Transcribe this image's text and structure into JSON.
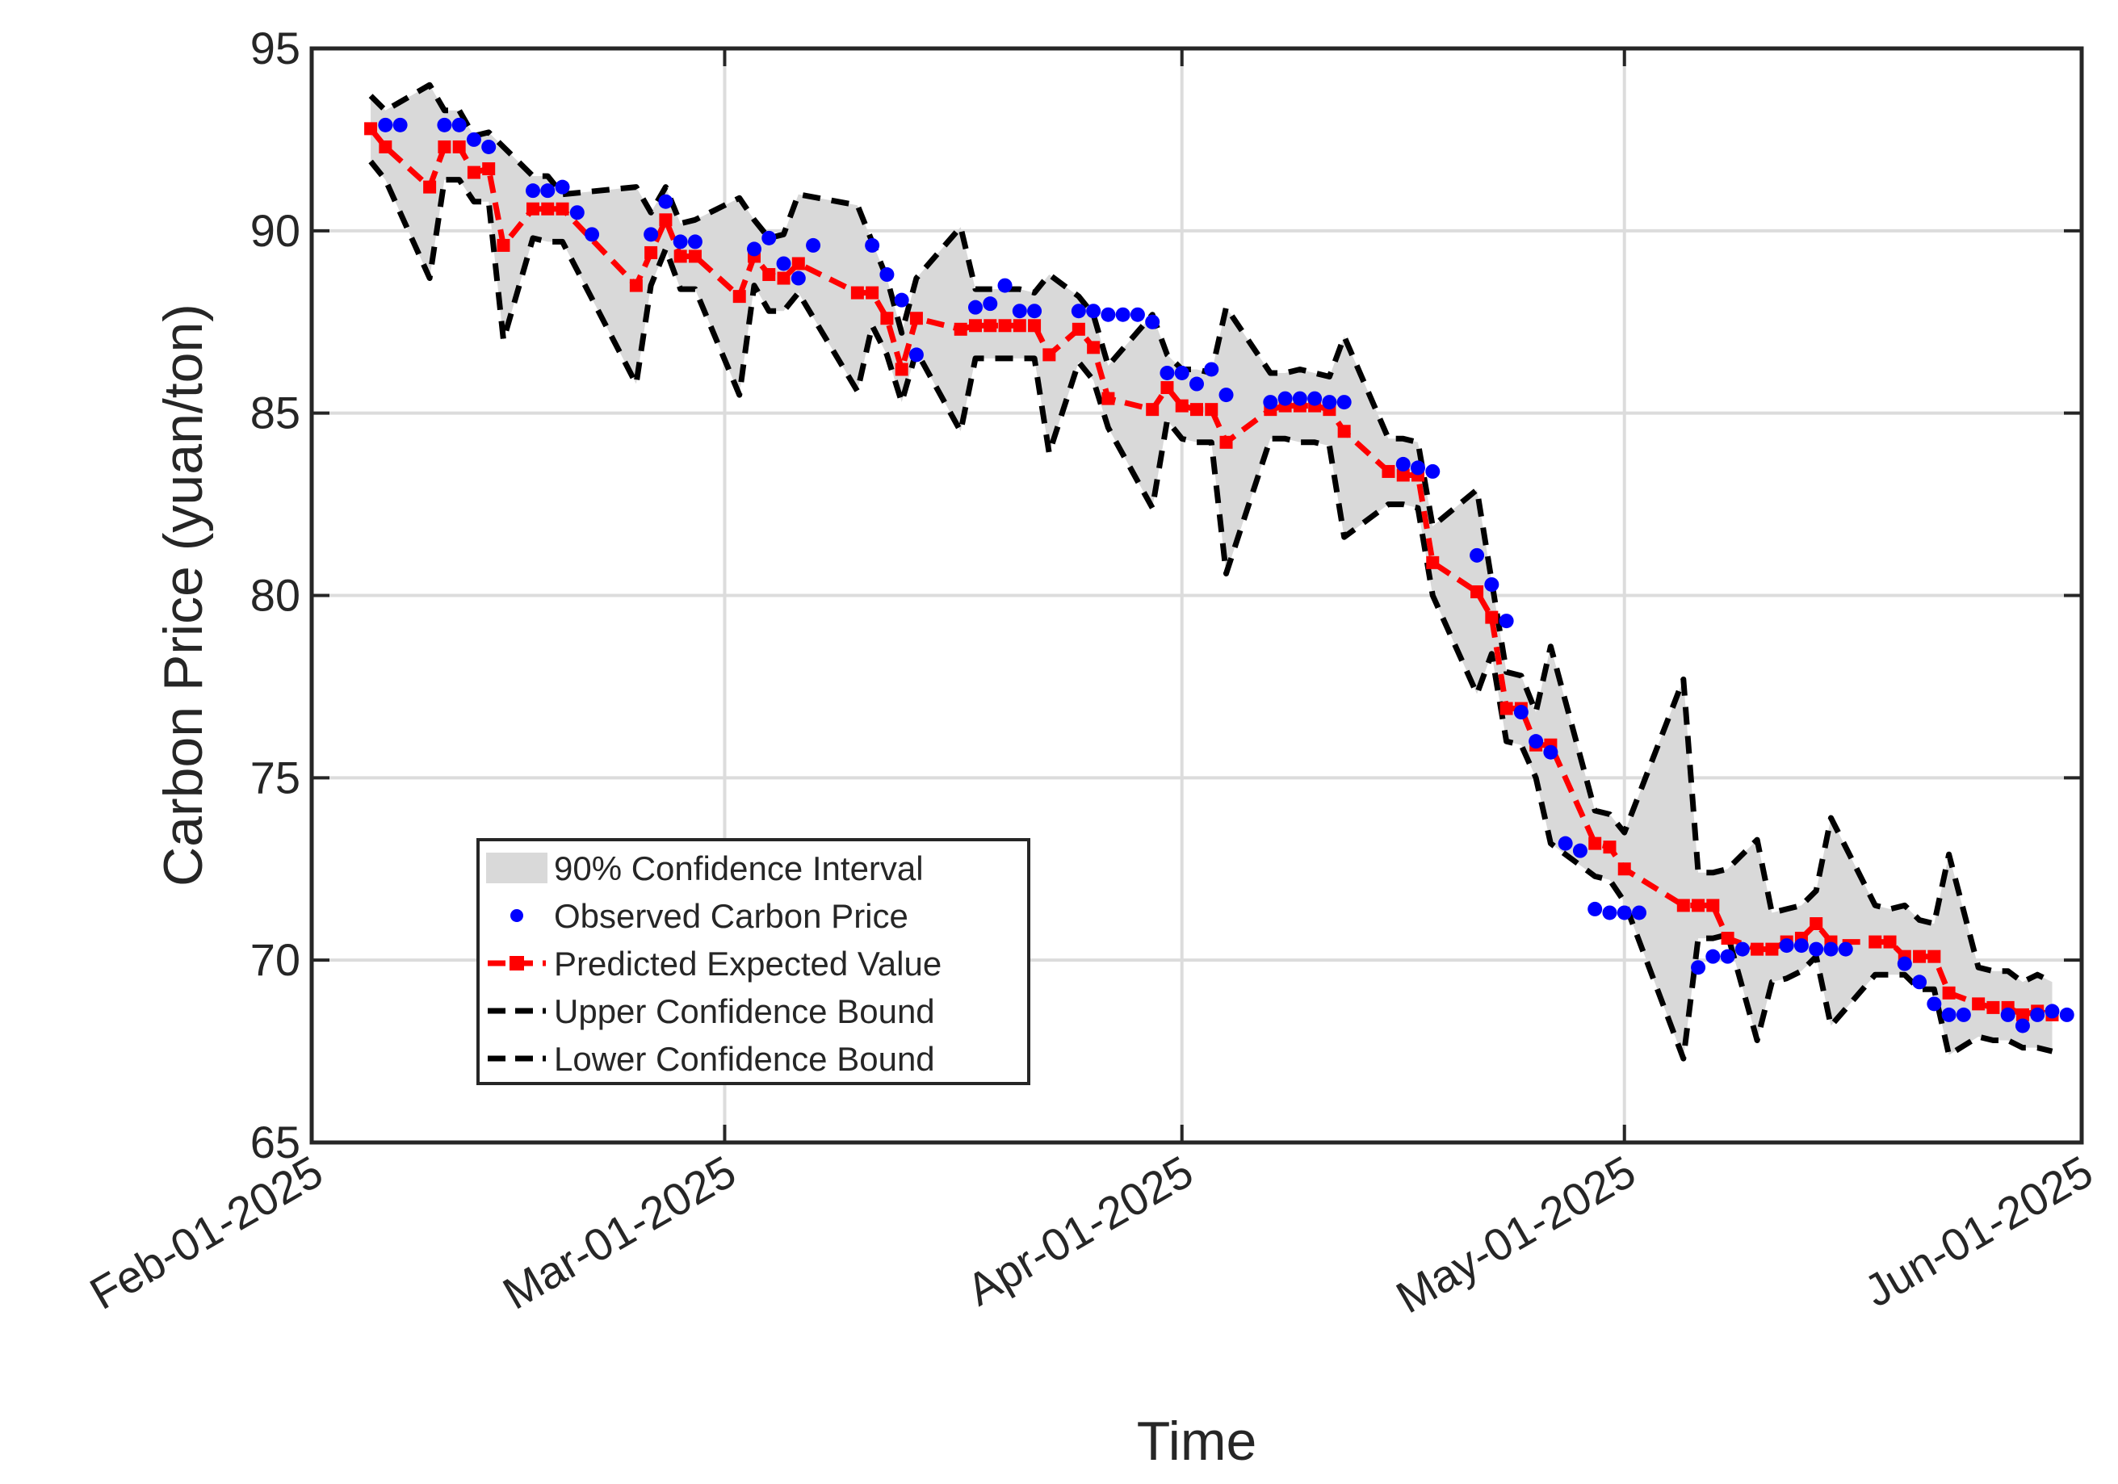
{
  "chart_data": {
    "type": "line",
    "title": "",
    "xlabel": "Time",
    "ylabel": "Carbon Price (yuan/ton)",
    "ylim": [
      65,
      95
    ],
    "xlim_day": [
      0,
      120
    ],
    "grid": true,
    "legend_position": "lower-left",
    "yticks": [
      65,
      70,
      75,
      80,
      85,
      90,
      95
    ],
    "xticks": [
      {
        "day": 0,
        "label": "Feb-01-2025"
      },
      {
        "day": 28,
        "label": "Mar-01-2025"
      },
      {
        "day": 59,
        "label": "Apr-01-2025"
      },
      {
        "day": 89,
        "label": "May-01-2025"
      },
      {
        "day": 120,
        "label": "Jun-01-2025"
      }
    ],
    "legend": [
      {
        "key": "ci",
        "label": "90% Confidence Interval"
      },
      {
        "key": "observed",
        "label": "Observed Carbon Price"
      },
      {
        "key": "predicted",
        "label": "Predicted Expected Value"
      },
      {
        "key": "upper",
        "label": "Upper Confidence Bound"
      },
      {
        "key": "lower",
        "label": "Lower Confidence Bound"
      }
    ],
    "colors": {
      "ci_fill": "#d9d9d9",
      "observed": "#0000ff",
      "predicted": "#ff0000",
      "bounds": "#000000",
      "grid": "#dcdcdc",
      "axis": "#262626"
    },
    "series": [
      {
        "name": "Observed Carbon Price",
        "key": "observed",
        "x": [
          5,
          6,
          9,
          10,
          11,
          12,
          15,
          16,
          17,
          18,
          19,
          23,
          24,
          25,
          26,
          30,
          31,
          32,
          33,
          34,
          38,
          39,
          40,
          41,
          45,
          46,
          47,
          48,
          49,
          52,
          53,
          54,
          55,
          56,
          57,
          58,
          59,
          60,
          61,
          62,
          65,
          66,
          67,
          68,
          69,
          70,
          74,
          75,
          76,
          79,
          80,
          81,
          82,
          83,
          84,
          85,
          86,
          87,
          88,
          89,
          90,
          94,
          95,
          96,
          97,
          100,
          101,
          102,
          103,
          104,
          108,
          109,
          110,
          111,
          112,
          115,
          116,
          117,
          118,
          119
        ],
        "values": [
          92.9,
          92.9,
          92.9,
          92.9,
          92.5,
          92.3,
          91.1,
          91.1,
          91.2,
          90.5,
          89.9,
          89.9,
          90.8,
          89.7,
          89.7,
          89.5,
          89.8,
          89.1,
          88.7,
          89.6,
          89.6,
          88.8,
          88.1,
          86.6,
          87.9,
          88.0,
          88.5,
          87.8,
          87.8,
          87.8,
          87.8,
          87.7,
          87.7,
          87.7,
          87.5,
          86.1,
          86.1,
          85.8,
          86.2,
          85.5,
          85.3,
          85.4,
          85.4,
          85.4,
          85.3,
          85.3,
          83.6,
          83.5,
          83.4,
          81.1,
          80.3,
          79.3,
          76.8,
          76.0,
          75.7,
          73.2,
          73.0,
          71.4,
          71.3,
          71.3,
          71.3,
          69.8,
          70.1,
          70.1,
          70.3,
          70.4,
          70.4,
          70.3,
          70.3,
          70.3,
          69.9,
          69.4,
          68.8,
          68.5,
          68.5,
          68.5,
          68.2,
          68.5,
          68.6,
          68.5
        ]
      },
      {
        "name": "Predicted Expected Value",
        "key": "predicted",
        "x": [
          4,
          5,
          8,
          9,
          10,
          11,
          12,
          13,
          15,
          16,
          17,
          22,
          23,
          24,
          25,
          26,
          29,
          30,
          31,
          32,
          33,
          37,
          38,
          39,
          40,
          41,
          44,
          45,
          46,
          47,
          48,
          49,
          50,
          52,
          53,
          54,
          57,
          58,
          59,
          60,
          61,
          62,
          65,
          66,
          67,
          68,
          69,
          70,
          73,
          74,
          75,
          76,
          79,
          80,
          81,
          82,
          83,
          84,
          87,
          88,
          89,
          93,
          94,
          95,
          96,
          98,
          99,
          100,
          101,
          102,
          103,
          106,
          107,
          108,
          109,
          110,
          111,
          113,
          114,
          115,
          116,
          117,
          118
        ],
        "values": [
          92.8,
          92.3,
          91.2,
          92.3,
          92.3,
          91.6,
          91.7,
          89.6,
          90.6,
          90.6,
          90.6,
          88.5,
          89.4,
          90.3,
          89.3,
          89.3,
          88.2,
          89.3,
          88.8,
          88.7,
          89.1,
          88.3,
          88.3,
          87.6,
          86.2,
          87.6,
          87.3,
          87.4,
          87.4,
          87.4,
          87.4,
          87.4,
          86.6,
          87.3,
          86.8,
          85.4,
          85.1,
          85.7,
          85.2,
          85.1,
          85.1,
          84.2,
          85.1,
          85.2,
          85.2,
          85.2,
          85.1,
          84.5,
          83.4,
          83.3,
          83.3,
          80.9,
          80.1,
          79.4,
          76.9,
          76.9,
          75.9,
          75.9,
          73.2,
          73.1,
          72.5,
          71.5,
          71.5,
          71.5,
          70.6,
          70.3,
          70.3,
          70.5,
          70.6,
          71.0,
          70.5,
          70.5,
          70.5,
          70.1,
          70.1,
          70.1,
          69.1,
          68.8,
          68.7,
          68.7,
          68.5,
          68.6,
          68.5
        ]
      },
      {
        "name": "Upper Confidence Bound",
        "key": "upper",
        "x": [
          4,
          5,
          8,
          9,
          10,
          11,
          12,
          13,
          15,
          16,
          17,
          22,
          23,
          24,
          25,
          26,
          29,
          30,
          31,
          32,
          33,
          37,
          38,
          39,
          40,
          41,
          44,
          45,
          46,
          47,
          48,
          49,
          50,
          52,
          53,
          54,
          57,
          58,
          59,
          60,
          61,
          62,
          65,
          66,
          67,
          68,
          69,
          70,
          73,
          74,
          75,
          76,
          79,
          80,
          81,
          82,
          83,
          84,
          87,
          88,
          89,
          93,
          94,
          95,
          96,
          98,
          99,
          100,
          101,
          102,
          103,
          106,
          107,
          108,
          109,
          110,
          111,
          113,
          114,
          115,
          116,
          117,
          118
        ],
        "values": [
          93.7,
          93.3,
          94.0,
          93.3,
          93.3,
          92.6,
          92.7,
          92.3,
          91.5,
          91.5,
          91.0,
          91.2,
          90.5,
          91.2,
          90.2,
          90.3,
          90.9,
          90.3,
          89.8,
          89.9,
          91.0,
          90.7,
          89.7,
          88.7,
          87.2,
          88.7,
          90.1,
          88.4,
          88.4,
          88.4,
          88.4,
          88.3,
          88.8,
          88.2,
          87.7,
          86.3,
          87.7,
          86.6,
          86.2,
          86.2,
          86.1,
          87.9,
          86.1,
          86.1,
          86.2,
          86.1,
          86.0,
          87.1,
          84.3,
          84.3,
          84.2,
          81.9,
          82.9,
          80.4,
          77.9,
          77.8,
          76.8,
          78.6,
          74.1,
          74.0,
          73.5,
          77.7,
          72.4,
          72.4,
          72.5,
          73.3,
          71.3,
          71.4,
          71.5,
          71.9,
          73.9,
          71.5,
          71.4,
          71.5,
          71.1,
          71.0,
          72.9,
          69.8,
          69.7,
          69.7,
          69.4,
          69.6,
          69.4
        ]
      },
      {
        "name": "Lower Confidence Bound",
        "key": "lower",
        "x": [
          4,
          5,
          8,
          9,
          10,
          11,
          12,
          13,
          15,
          16,
          17,
          22,
          23,
          24,
          25,
          26,
          29,
          30,
          31,
          32,
          33,
          37,
          38,
          39,
          40,
          41,
          44,
          45,
          46,
          47,
          48,
          49,
          50,
          52,
          53,
          54,
          57,
          58,
          59,
          60,
          61,
          62,
          65,
          66,
          67,
          68,
          69,
          70,
          73,
          74,
          75,
          76,
          79,
          80,
          81,
          82,
          83,
          84,
          87,
          88,
          89,
          93,
          94,
          95,
          96,
          98,
          99,
          100,
          101,
          102,
          103,
          106,
          107,
          108,
          109,
          110,
          111,
          113,
          114,
          115,
          116,
          117,
          118
        ],
        "values": [
          91.9,
          91.4,
          88.7,
          91.4,
          91.4,
          90.8,
          90.8,
          87.0,
          89.8,
          89.7,
          89.7,
          85.8,
          88.5,
          89.5,
          88.4,
          88.4,
          85.5,
          88.5,
          87.8,
          87.8,
          88.3,
          85.6,
          87.4,
          86.6,
          85.3,
          86.7,
          84.5,
          86.5,
          86.5,
          86.5,
          86.5,
          86.5,
          83.9,
          86.4,
          85.9,
          84.6,
          82.4,
          84.8,
          84.3,
          84.2,
          84.2,
          80.6,
          84.3,
          84.3,
          84.2,
          84.2,
          84.1,
          81.6,
          82.5,
          82.5,
          82.4,
          80.0,
          77.3,
          78.4,
          76.0,
          75.9,
          75.0,
          73.2,
          72.3,
          72.2,
          71.6,
          67.3,
          70.6,
          70.6,
          70.7,
          67.8,
          69.4,
          69.5,
          69.7,
          70.1,
          68.2,
          69.6,
          69.6,
          69.6,
          69.2,
          69.2,
          67.4,
          67.9,
          67.8,
          67.8,
          67.6,
          67.6,
          67.5
        ]
      }
    ]
  }
}
